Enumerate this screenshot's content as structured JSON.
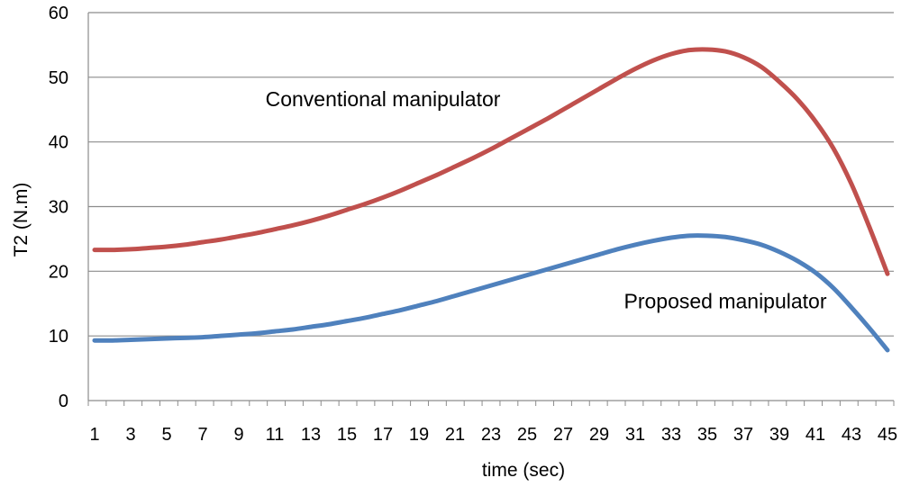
{
  "chart_data": {
    "type": "line",
    "title": "",
    "xlabel": "time (sec)",
    "ylabel": "T2 (N.m)",
    "xlim": [
      1,
      45
    ],
    "ylim": [
      0,
      60
    ],
    "yticks": [
      0,
      10,
      20,
      30,
      40,
      50,
      60
    ],
    "xticks": [
      1,
      3,
      5,
      7,
      9,
      11,
      13,
      15,
      17,
      19,
      21,
      23,
      25,
      27,
      29,
      31,
      33,
      35,
      37,
      39,
      41,
      43,
      45
    ],
    "grid": "horizontal",
    "legend": "none",
    "x": [
      1,
      2,
      3,
      4,
      5,
      6,
      7,
      8,
      9,
      10,
      11,
      12,
      13,
      14,
      15,
      16,
      17,
      18,
      19,
      20,
      21,
      22,
      23,
      24,
      25,
      26,
      27,
      28,
      29,
      30,
      31,
      32,
      33,
      34,
      35,
      36,
      37,
      38,
      39,
      40,
      41,
      42,
      43,
      44,
      45
    ],
    "series": [
      {
        "name": "Conventional manipulator",
        "color": "#c0504d",
        "values": [
          23.3,
          23.3,
          23.4,
          23.6,
          23.8,
          24.1,
          24.5,
          24.9,
          25.4,
          25.9,
          26.5,
          27.1,
          27.8,
          28.6,
          29.5,
          30.4,
          31.4,
          32.5,
          33.7,
          34.9,
          36.2,
          37.5,
          38.9,
          40.4,
          41.9,
          43.4,
          45.0,
          46.6,
          48.2,
          49.8,
          51.3,
          52.6,
          53.6,
          54.2,
          54.3,
          54.0,
          53.1,
          51.6,
          49.3,
          46.6,
          43.2,
          39.0,
          33.5,
          26.8,
          19.6
        ]
      },
      {
        "name": "Proposed manipulator",
        "color": "#4f81bd",
        "values": [
          9.3,
          9.3,
          9.4,
          9.5,
          9.6,
          9.7,
          9.8,
          10.0,
          10.2,
          10.4,
          10.7,
          11.0,
          11.4,
          11.8,
          12.3,
          12.8,
          13.4,
          14.0,
          14.7,
          15.4,
          16.2,
          17.0,
          17.8,
          18.6,
          19.4,
          20.2,
          21.0,
          21.8,
          22.6,
          23.4,
          24.1,
          24.7,
          25.2,
          25.5,
          25.5,
          25.3,
          24.8,
          24.1,
          23.0,
          21.6,
          19.8,
          17.4,
          14.4,
          11.2,
          7.8
        ]
      }
    ],
    "annotations": [
      {
        "text": "Conventional manipulator",
        "x": 17,
        "y": 45.5
      },
      {
        "text": "Proposed manipulator",
        "x": 36,
        "y": 14.3
      }
    ]
  }
}
